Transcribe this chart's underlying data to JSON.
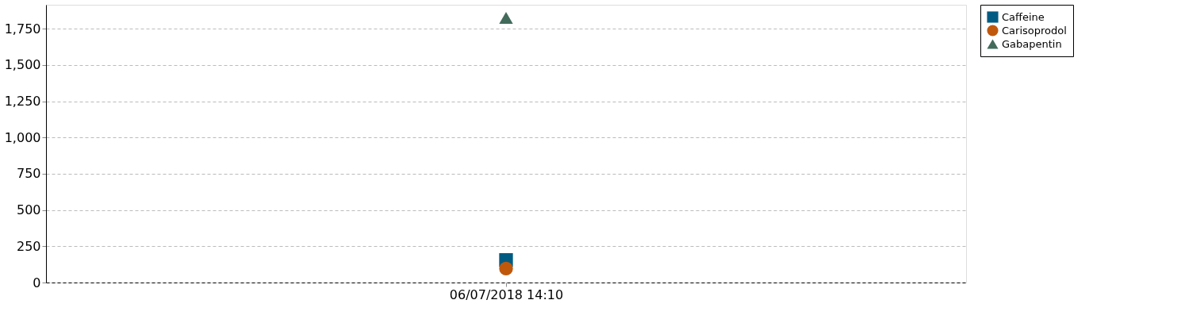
{
  "chart_data": {
    "type": "line",
    "categories": [
      "06/07/2018 14:10"
    ],
    "series": [
      {
        "name": "Caffeine",
        "color": "#005b82",
        "marker": "square",
        "values": [
          155
        ]
      },
      {
        "name": "Carisoprodol",
        "color": "#c0580c",
        "marker": "circle",
        "values": [
          96
        ]
      },
      {
        "name": "Gabapentin",
        "color": "#436b5c",
        "marker": "triangle",
        "values": [
          1825
        ]
      }
    ],
    "ylim": [
      0,
      1915
    ],
    "yticks": [
      0,
      250,
      500,
      750,
      {
        "value": 1000,
        "label": "1,000"
      },
      {
        "value": 1250,
        "label": "1,250"
      },
      {
        "value": 1500,
        "label": "1,500"
      },
      {
        "value": 1750,
        "label": "1,750"
      }
    ],
    "grid": "y",
    "legend": "right"
  }
}
